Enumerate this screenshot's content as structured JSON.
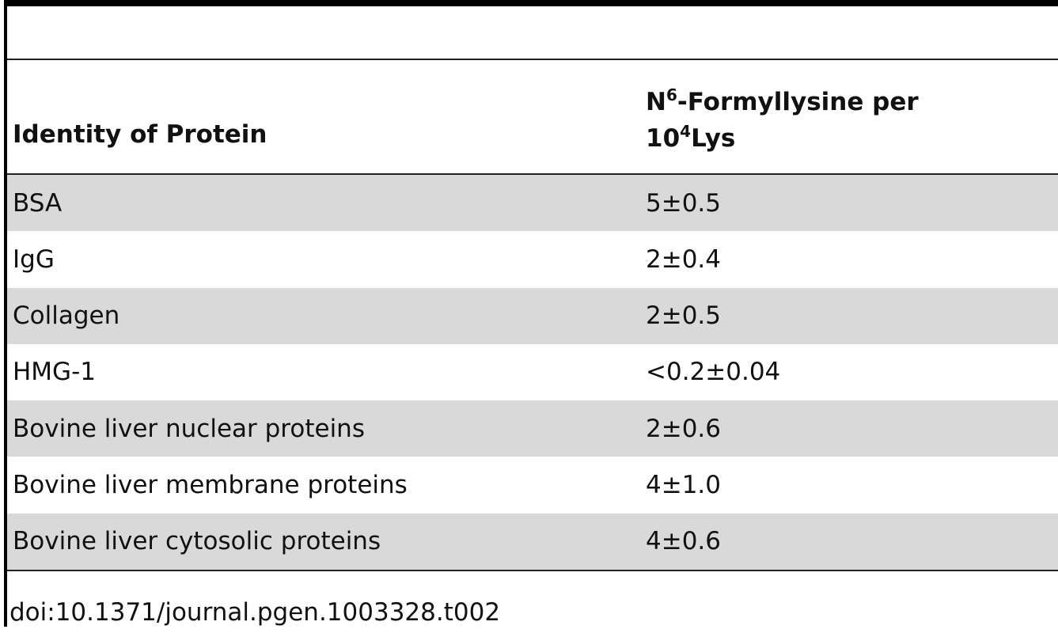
{
  "header": {
    "col1": "Identity of Protein",
    "col2": [
      "N",
      "6",
      "-Formyllysine per",
      "10",
      "4",
      "Lys"
    ]
  },
  "table": {
    "rows": [
      [
        "BSA",
        "5±0.5"
      ],
      [
        "IgG",
        "2±0.4"
      ],
      [
        "Collagen",
        "2±0.5"
      ],
      [
        "HMG-1",
        "<0.2±0.04"
      ],
      [
        "Bovine liver nuclear proteins",
        "2±0.6"
      ],
      [
        "Bovine liver membrane proteins",
        "4±1.0"
      ],
      [
        "Bovine liver cytosolic proteins",
        "4±0.6"
      ]
    ]
  },
  "footer": {
    "doi": "doi:10.1371/journal.pgen.1003328.t002"
  }
}
